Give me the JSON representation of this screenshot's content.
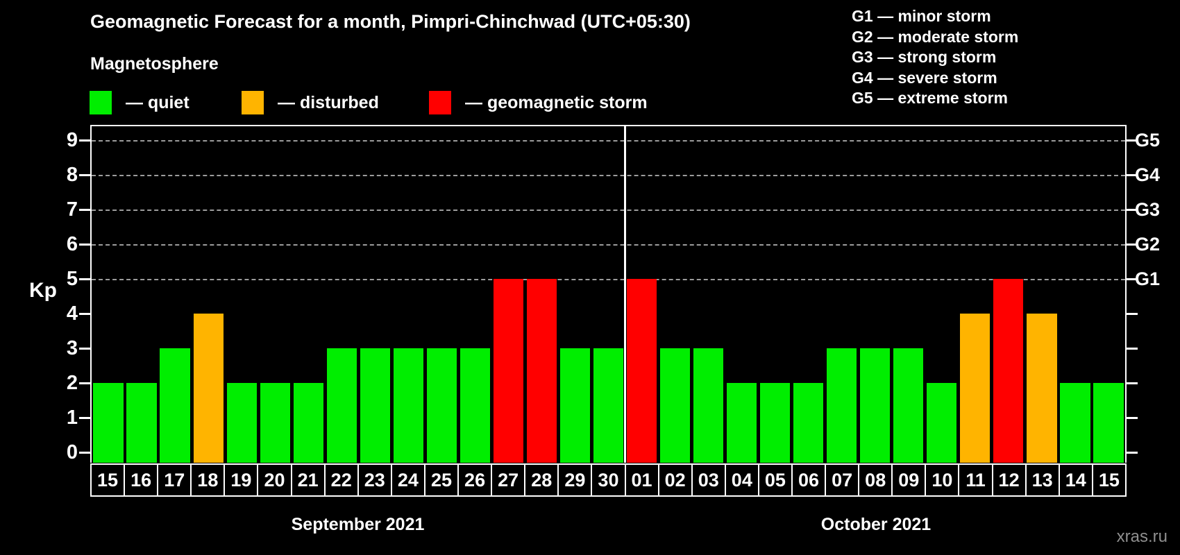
{
  "title": "Geomagnetic Forecast for a month, Pimpri-Chinchwad (UTC+05:30)",
  "legend": {
    "heading": "Magnetosphere",
    "items": [
      {
        "label": "— quiet",
        "status": "quiet"
      },
      {
        "label": "— disturbed",
        "status": "disturbed"
      },
      {
        "label": "— geomagnetic storm",
        "status": "storm"
      }
    ]
  },
  "g_legend": [
    "G1 — minor storm",
    "G2 — moderate storm",
    "G3 — strong storm",
    "G4 — severe storm",
    "G5 — extreme storm"
  ],
  "colors": {
    "quiet": "#00ee00",
    "disturbed": "#ffb400",
    "storm": "#ff0000"
  },
  "axis": {
    "y_label": "Kp",
    "kp_ticks": [
      0,
      1,
      2,
      3,
      4,
      5,
      6,
      7,
      8,
      9
    ],
    "g_labels": [
      {
        "label": "G1",
        "kp": 5
      },
      {
        "label": "G2",
        "kp": 6
      },
      {
        "label": "G3",
        "kp": 7
      },
      {
        "label": "G4",
        "kp": 8
      },
      {
        "label": "G5",
        "kp": 9
      }
    ]
  },
  "chart_data": {
    "type": "bar",
    "title": "Geomagnetic Forecast for a month, Pimpri-Chinchwad (UTC+05:30)",
    "ylabel": "Kp",
    "ylim": [
      0,
      9
    ],
    "grid": "dashed horizontal at Kp 5-9 only",
    "legend_position": "top",
    "gridline_kp": [
      5,
      6,
      7,
      8,
      9
    ],
    "months": [
      {
        "name": "September 2021",
        "days": [
          {
            "day": "15",
            "kp": 2,
            "status": "quiet"
          },
          {
            "day": "16",
            "kp": 2,
            "status": "quiet"
          },
          {
            "day": "17",
            "kp": 3,
            "status": "quiet"
          },
          {
            "day": "18",
            "kp": 4,
            "status": "disturbed"
          },
          {
            "day": "19",
            "kp": 2,
            "status": "quiet"
          },
          {
            "day": "20",
            "kp": 2,
            "status": "quiet"
          },
          {
            "day": "21",
            "kp": 2,
            "status": "quiet"
          },
          {
            "day": "22",
            "kp": 3,
            "status": "quiet"
          },
          {
            "day": "23",
            "kp": 3,
            "status": "quiet"
          },
          {
            "day": "24",
            "kp": 3,
            "status": "quiet"
          },
          {
            "day": "25",
            "kp": 3,
            "status": "quiet"
          },
          {
            "day": "26",
            "kp": 3,
            "status": "quiet"
          },
          {
            "day": "27",
            "kp": 5,
            "status": "storm"
          },
          {
            "day": "28",
            "kp": 5,
            "status": "storm"
          },
          {
            "day": "29",
            "kp": 3,
            "status": "quiet"
          },
          {
            "day": "30",
            "kp": 3,
            "status": "quiet"
          }
        ]
      },
      {
        "name": "October 2021",
        "days": [
          {
            "day": "01",
            "kp": 5,
            "status": "storm"
          },
          {
            "day": "02",
            "kp": 3,
            "status": "quiet"
          },
          {
            "day": "03",
            "kp": 3,
            "status": "quiet"
          },
          {
            "day": "04",
            "kp": 2,
            "status": "quiet"
          },
          {
            "day": "05",
            "kp": 2,
            "status": "quiet"
          },
          {
            "day": "06",
            "kp": 2,
            "status": "quiet"
          },
          {
            "day": "07",
            "kp": 3,
            "status": "quiet"
          },
          {
            "day": "08",
            "kp": 3,
            "status": "quiet"
          },
          {
            "day": "09",
            "kp": 3,
            "status": "quiet"
          },
          {
            "day": "10",
            "kp": 2,
            "status": "quiet"
          },
          {
            "day": "11",
            "kp": 4,
            "status": "disturbed"
          },
          {
            "day": "12",
            "kp": 5,
            "status": "storm"
          },
          {
            "day": "13",
            "kp": 4,
            "status": "disturbed"
          },
          {
            "day": "14",
            "kp": 2,
            "status": "quiet"
          },
          {
            "day": "15",
            "kp": 2,
            "status": "quiet"
          }
        ]
      }
    ]
  },
  "watermark": "xras.ru"
}
